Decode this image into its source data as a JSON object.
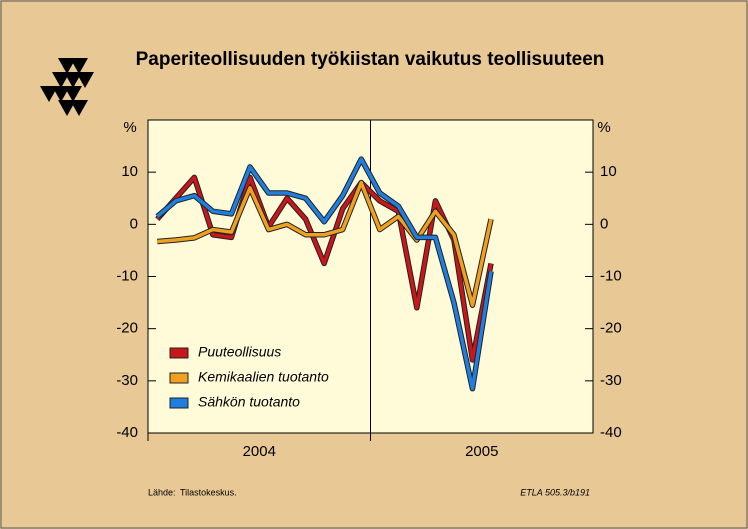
{
  "chart_data": {
    "type": "line",
    "title": "Paperiteollisuuden työkiistan vaikutus teollisuuteen",
    "unit_label": "%",
    "groups": [
      {
        "label": "2004",
        "size": 12
      },
      {
        "label": "2005",
        "size": 12
      }
    ],
    "series": [
      {
        "name": "Puuteollisuus",
        "color": "#c8161b",
        "values": [
          1,
          5,
          9,
          -2,
          -2.5,
          9,
          -0.5,
          5,
          1,
          -7.5,
          3,
          8,
          4.5,
          2.5,
          -16,
          4.5,
          -3,
          -26,
          -7.5
        ]
      },
      {
        "name": "Kemikaalien tuotanto",
        "color": "#f0a020",
        "values": [
          -3.3,
          -3,
          -2.6,
          -1,
          -1.5,
          7,
          -1,
          0,
          -2,
          -2,
          -1,
          8,
          -1,
          1.5,
          -3,
          2.5,
          -2,
          -15.5,
          1
        ]
      },
      {
        "name": "Sähkön tuotanto",
        "color": "#1f7fe0",
        "values": [
          1.5,
          4.5,
          5.5,
          2.5,
          2,
          11,
          6,
          6,
          5,
          0.5,
          5.5,
          12.5,
          6,
          3.5,
          -2.5,
          -2.5,
          -15,
          -31.5,
          -9
        ]
      }
    ],
    "ylim": [
      -40,
      20
    ],
    "yticks": [
      10,
      0,
      -10,
      -20,
      -30,
      -40
    ],
    "source_label": "Lähde:",
    "source": "Tilastokeskus.",
    "code": "ETLA 505.3/b191"
  }
}
